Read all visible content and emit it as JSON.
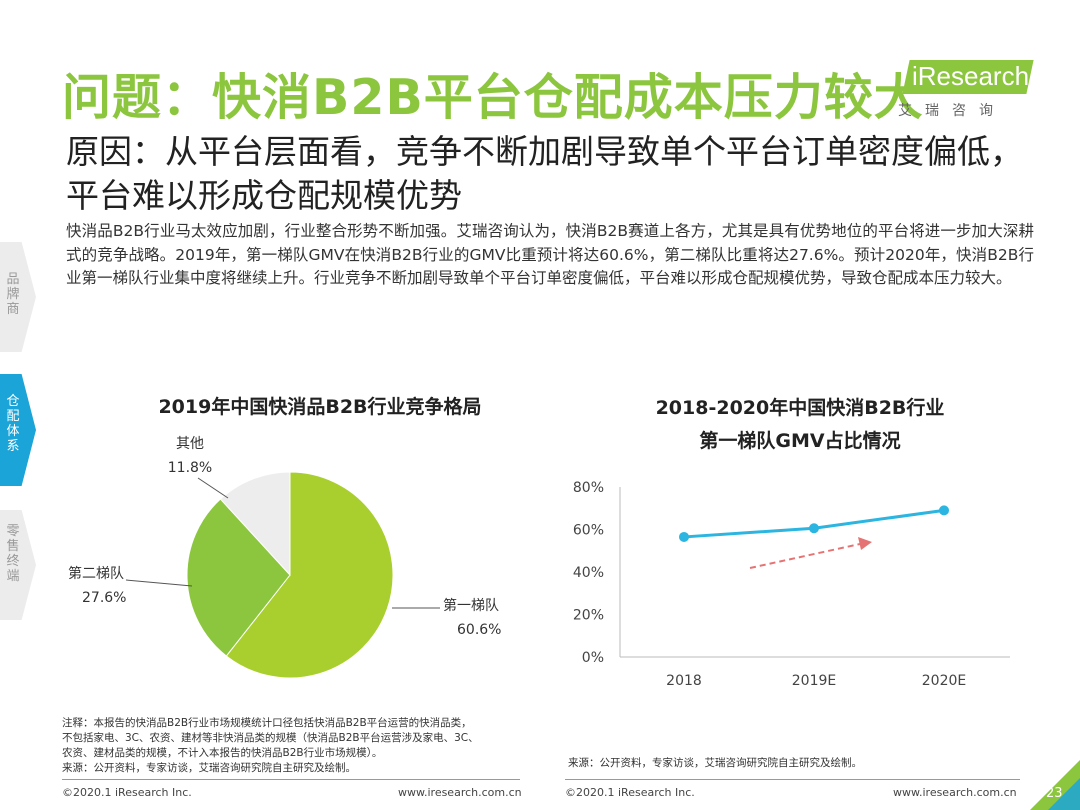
{
  "header": {
    "title": "问题：快消B2B平台仓配成本压力较大",
    "subtitle": "原因：从平台层面看，竞争不断加剧导致单个平台订单密度偏低，平台难以形成仓配规模优势",
    "logo_text": "iResearch",
    "logo_sub": "艾瑞咨询"
  },
  "intro": "快消品B2B行业马太效应加剧，行业整合形势不断加强。艾瑞咨询认为，快消B2B赛道上各方，尤其是具有优势地位的平台将进一步加大深耕式的竞争战略。2019年，第一梯队GMV在快消B2B行业的GMV比重预计将达60.6%，第二梯队比重将达27.6%。预计2020年，快消B2B行业第一梯队行业集中度将继续上升。行业竞争不断加剧导致单个平台订单密度偏低，平台难以形成仓配规模优势，导致仓配成本压力较大。",
  "sidebar": {
    "items": [
      {
        "label": "品牌商",
        "active": false
      },
      {
        "label": "仓配体系",
        "active": true
      },
      {
        "label": "零售终端",
        "active": false
      }
    ]
  },
  "colors": {
    "accent_green": "#8cc63f",
    "active_blue": "#1aa4d8",
    "pie_first": "#a8cf2e",
    "pie_second": "#8cc63f",
    "pie_other": "#ededed",
    "line": "#2bb5e0",
    "arrow": "#e57373"
  },
  "chart_data": [
    {
      "type": "pie",
      "title": "2019年中国快消品B2B行业竞争格局",
      "slices": [
        {
          "label": "第一梯队",
          "value": 60.6,
          "display": "60.6%"
        },
        {
          "label": "第二梯队",
          "value": 27.6,
          "display": "27.6%"
        },
        {
          "label": "其他",
          "value": 11.8,
          "display": "11.8%"
        }
      ]
    },
    {
      "type": "line",
      "title": "2018-2020年中国快消B2B行业\n第一梯队GMV占比情况",
      "title_lines": [
        "2018-2020年中国快消B2B行业",
        "第一梯队GMV占比情况"
      ],
      "categories": [
        "2018",
        "2019E",
        "2020E"
      ],
      "series": [
        {
          "values": [
            56.5,
            60.6,
            69.0
          ]
        }
      ],
      "ylim": [
        0,
        80
      ],
      "yticks": [
        "0%",
        "20%",
        "40%",
        "60%",
        "80%"
      ],
      "grid": false
    }
  ],
  "notes": {
    "left": [
      "注释：本报告的快消品B2B行业市场规模统计口径包括快消品B2B平台运营的快消品类，",
      "不包括家电、3C、农资、建材等非快消品类的规模（快消品B2B平台运营涉及家电、3C、",
      "农资、建材品类的规模，不计入本报告的快消品B2B行业市场规模）。",
      "来源：公开资料，专家访谈，艾瑞咨询研究院自主研究及绘制。"
    ],
    "right": "来源：公开资料，专家访谈，艾瑞咨询研究院自主研究及绘制。"
  },
  "footer": {
    "copyright_left": "©2020.1 iResearch Inc.",
    "url_left": "www.iresearch.com.cn",
    "copyright_right": "©2020.1 iResearch Inc.",
    "url_right": "www.iresearch.com.cn",
    "page_number": "23"
  }
}
